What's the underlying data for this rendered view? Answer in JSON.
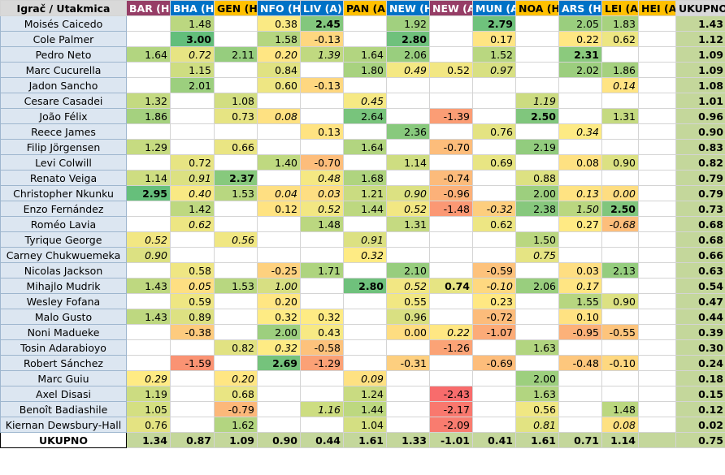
{
  "header": {
    "corner": "Igrač / Utakmica",
    "total": "UKUPNO",
    "columns": [
      {
        "label": "BAR (H)",
        "bg": "#963d66",
        "fg": "#ffffff"
      },
      {
        "label": "BHA (H)",
        "bg": "#0072c6",
        "fg": "#ffffff"
      },
      {
        "label": "GEN (H)",
        "bg": "#ffc000",
        "fg": "#000000"
      },
      {
        "label": "NFO (H)",
        "bg": "#0072c6",
        "fg": "#ffffff"
      },
      {
        "label": "LIV (A)",
        "bg": "#0072c6",
        "fg": "#ffffff"
      },
      {
        "label": "PAN (A)",
        "bg": "#ffc000",
        "fg": "#000000"
      },
      {
        "label": "NEW (H)",
        "bg": "#0072c6",
        "fg": "#ffffff"
      },
      {
        "label": "NEW (A)",
        "bg": "#963d66",
        "fg": "#ffffff"
      },
      {
        "label": "MUN (A)",
        "bg": "#0072c6",
        "fg": "#ffffff"
      },
      {
        "label": "NOA (H)",
        "bg": "#ffc000",
        "fg": "#000000"
      },
      {
        "label": "ARS (H)",
        "bg": "#0072c6",
        "fg": "#ffffff"
      },
      {
        "label": "LEI (A)",
        "bg": "#ffc000",
        "fg": "#000000"
      },
      {
        "label": "HEI (A)",
        "bg": "#ffc000",
        "fg": "#000000"
      }
    ]
  },
  "rows": [
    {
      "name": "Moisés Caicedo",
      "cells": [
        "",
        "1.48",
        "",
        "0.38",
        "2.45",
        "",
        "1.92",
        "",
        "2.79",
        "",
        "2.05",
        "1.83",
        ""
      ],
      "total": "1.43"
    },
    {
      "name": "Cole Palmer",
      "cells": [
        "",
        "3.00",
        "",
        "1.58",
        "-0.13",
        "",
        "2.80",
        "",
        "0.17",
        "",
        "0.22",
        "0.62",
        ""
      ],
      "total": "1.12"
    },
    {
      "name": "Pedro Neto",
      "cells": [
        "1.64",
        "0.72",
        "2.11",
        "0.20",
        "1.39",
        "1.64",
        "2.06",
        "",
        "1.52",
        "",
        "2.31",
        "",
        ""
      ],
      "total": "1.09"
    },
    {
      "name": "Marc Cucurella",
      "cells": [
        "",
        "1.15",
        "",
        "0.84",
        "",
        "1.80",
        "0.49",
        "0.52",
        "0.97",
        "",
        "2.02",
        "1.86",
        ""
      ],
      "total": "1.09"
    },
    {
      "name": "Jadon Sancho",
      "cells": [
        "",
        "2.01",
        "",
        "0.60",
        "-0.13",
        "",
        "",
        "",
        "",
        "",
        "",
        "0.14",
        ""
      ],
      "total": "1.08"
    },
    {
      "name": "Cesare Casadei",
      "cells": [
        "1.32",
        "",
        "1.08",
        "",
        "",
        "0.45",
        "",
        "",
        "",
        "1.19",
        "",
        "",
        ""
      ],
      "total": "1.01"
    },
    {
      "name": "João Félix",
      "cells": [
        "1.86",
        "",
        "0.73",
        "0.08",
        "",
        "2.64",
        "",
        "-1.39",
        "",
        "2.50",
        "",
        "1.31",
        ""
      ],
      "total": "0.96"
    },
    {
      "name": "Reece James",
      "cells": [
        "",
        "",
        "",
        "",
        "0.13",
        "",
        "2.36",
        "",
        "0.76",
        "",
        "0.34",
        "",
        ""
      ],
      "total": "0.90"
    },
    {
      "name": "Filip Jörgensen",
      "cells": [
        "1.29",
        "",
        "0.66",
        "",
        "",
        "1.64",
        "",
        "-0.70",
        "",
        "2.19",
        "",
        "",
        ""
      ],
      "total": "0.83"
    },
    {
      "name": "Levi Colwill",
      "cells": [
        "",
        "0.72",
        "",
        "1.40",
        "-0.70",
        "",
        "1.14",
        "",
        "0.69",
        "",
        "0.08",
        "0.90",
        ""
      ],
      "total": "0.82"
    },
    {
      "name": "Renato Veiga",
      "cells": [
        "1.14",
        "0.91",
        "2.37",
        "",
        "0.48",
        "1.68",
        "",
        "-0.74",
        "",
        "0.88",
        "",
        "",
        ""
      ],
      "total": "0.79"
    },
    {
      "name": "Christopher Nkunku",
      "cells": [
        "2.95",
        "0.40",
        "1.53",
        "0.04",
        "0.03",
        "1.21",
        "0.90",
        "-0.96",
        "",
        "2.00",
        "0.13",
        "0.00",
        ""
      ],
      "total": "0.79"
    },
    {
      "name": "Enzo Fernández",
      "cells": [
        "",
        "1.42",
        "",
        "0.12",
        "0.52",
        "1.44",
        "0.52",
        "-1.48",
        "-0.32",
        "2.38",
        "1.50",
        "2.50",
        ""
      ],
      "total": "0.73"
    },
    {
      "name": "Roméo Lavia",
      "cells": [
        "",
        "0.62",
        "",
        "",
        "1.48",
        "",
        "1.31",
        "",
        "0.62",
        "",
        "0.27",
        "-0.68",
        ""
      ],
      "total": "0.68"
    },
    {
      "name": "Tyrique George",
      "cells": [
        "0.52",
        "",
        "0.56",
        "",
        "",
        "0.91",
        "",
        "",
        "",
        "1.50",
        "",
        "",
        ""
      ],
      "total": "0.68"
    },
    {
      "name": "Carney Chukwuemeka",
      "cells": [
        "0.90",
        "",
        "",
        "",
        "",
        "0.32",
        "",
        "",
        "",
        "0.75",
        "",
        "",
        ""
      ],
      "total": "0.66"
    },
    {
      "name": "Nicolas Jackson",
      "cells": [
        "",
        "0.58",
        "",
        "-0.25",
        "1.71",
        "",
        "2.10",
        "",
        "-0.59",
        "",
        "0.03",
        "2.13",
        ""
      ],
      "total": "0.63"
    },
    {
      "name": "Mihajlo Mudrik",
      "cells": [
        "1.43",
        "0.05",
        "1.53",
        "1.00",
        "",
        "2.80",
        "0.52",
        "0.74",
        "-0.10",
        "2.06",
        "0.17",
        "",
        ""
      ],
      "total": "0.54"
    },
    {
      "name": "Wesley Fofana",
      "cells": [
        "",
        "0.59",
        "",
        "0.20",
        "",
        "",
        "0.55",
        "",
        "0.23",
        "",
        "1.55",
        "0.90",
        ""
      ],
      "total": "0.47"
    },
    {
      "name": "Malo Gusto",
      "cells": [
        "1.43",
        "0.89",
        "",
        "0.32",
        "0.32",
        "",
        "0.96",
        "",
        "-0.72",
        "",
        "0.10",
        "",
        ""
      ],
      "total": "0.44"
    },
    {
      "name": "Noni Madueke",
      "cells": [
        "",
        "-0.38",
        "",
        "2.00",
        "0.43",
        "",
        "0.00",
        "0.22",
        "-1.07",
        "",
        "-0.95",
        "-0.55",
        ""
      ],
      "total": "0.39"
    },
    {
      "name": "Tosin Adarabioyo",
      "cells": [
        "",
        "",
        "0.82",
        "0.32",
        "-0.58",
        "",
        "",
        "-1.26",
        "",
        "1.63",
        "",
        "",
        ""
      ],
      "total": "0.30"
    },
    {
      "name": "Robert Sánchez",
      "cells": [
        "",
        "-1.59",
        "",
        "2.69",
        "-1.29",
        "",
        "-0.31",
        "",
        "-0.69",
        "",
        "-0.48",
        "-0.10",
        ""
      ],
      "total": "0.24"
    },
    {
      "name": "Marc Guiu",
      "cells": [
        "0.29",
        "",
        "0.20",
        "",
        "",
        "0.09",
        "",
        "",
        "",
        "2.00",
        "",
        "",
        ""
      ],
      "total": "0.18"
    },
    {
      "name": "Axel Disasi",
      "cells": [
        "1.19",
        "",
        "0.68",
        "",
        "",
        "1.24",
        "",
        "-2.43",
        "",
        "1.63",
        "",
        "",
        ""
      ],
      "total": "0.15"
    },
    {
      "name": "Benoît Badiashile",
      "cells": [
        "1.05",
        "",
        "-0.79",
        "",
        "1.16",
        "1.44",
        "",
        "-2.17",
        "",
        "0.56",
        "",
        "1.48",
        ""
      ],
      "total": "0.12"
    },
    {
      "name": "Kiernan Dewsbury-Hall",
      "cells": [
        "0.76",
        "",
        "1.62",
        "",
        "",
        "1.04",
        "",
        "-2.09",
        "",
        "0.81",
        "",
        "0.08",
        ""
      ],
      "total": "0.02"
    }
  ],
  "italic": [
    [
      0,
      0,
      0,
      0,
      0,
      0,
      0,
      0,
      0,
      0,
      0,
      0,
      0
    ],
    [
      0,
      0,
      0,
      0,
      0,
      0,
      0,
      0,
      0,
      0,
      0,
      0,
      0
    ],
    [
      0,
      1,
      0,
      1,
      1,
      0,
      0,
      0,
      0,
      0,
      0,
      0,
      0
    ],
    [
      0,
      0,
      0,
      0,
      0,
      0,
      1,
      0,
      1,
      0,
      0,
      0,
      0
    ],
    [
      0,
      0,
      0,
      0,
      0,
      0,
      0,
      0,
      0,
      0,
      0,
      1,
      0
    ],
    [
      0,
      0,
      0,
      0,
      0,
      1,
      0,
      0,
      0,
      1,
      0,
      0,
      0
    ],
    [
      0,
      0,
      0,
      1,
      0,
      0,
      0,
      0,
      0,
      0,
      0,
      0,
      0
    ],
    [
      0,
      0,
      0,
      0,
      0,
      0,
      0,
      0,
      0,
      0,
      1,
      0,
      0
    ],
    [
      0,
      0,
      0,
      0,
      0,
      0,
      0,
      0,
      0,
      0,
      0,
      0,
      0
    ],
    [
      0,
      0,
      0,
      0,
      0,
      0,
      0,
      0,
      0,
      0,
      0,
      0,
      0
    ],
    [
      0,
      1,
      0,
      0,
      1,
      0,
      0,
      0,
      0,
      0,
      0,
      0,
      0
    ],
    [
      0,
      1,
      0,
      1,
      1,
      0,
      1,
      0,
      0,
      0,
      1,
      1,
      0
    ],
    [
      0,
      0,
      0,
      0,
      1,
      0,
      1,
      0,
      1,
      0,
      1,
      0,
      0
    ],
    [
      0,
      1,
      0,
      0,
      0,
      0,
      0,
      0,
      0,
      0,
      0,
      1,
      0
    ],
    [
      1,
      0,
      1,
      0,
      0,
      1,
      0,
      0,
      0,
      0,
      0,
      0,
      0
    ],
    [
      1,
      0,
      0,
      0,
      0,
      1,
      0,
      0,
      0,
      1,
      0,
      0,
      0
    ],
    [
      0,
      0,
      0,
      0,
      0,
      0,
      0,
      0,
      0,
      0,
      0,
      0,
      0
    ],
    [
      0,
      1,
      0,
      1,
      0,
      0,
      1,
      0,
      1,
      0,
      1,
      0,
      0
    ],
    [
      0,
      0,
      0,
      0,
      0,
      0,
      0,
      0,
      0,
      0,
      0,
      0,
      0
    ],
    [
      0,
      0,
      0,
      0,
      0,
      0,
      0,
      0,
      0,
      0,
      0,
      0,
      0
    ],
    [
      0,
      0,
      0,
      0,
      0,
      0,
      0,
      1,
      0,
      0,
      0,
      0,
      0
    ],
    [
      0,
      0,
      0,
      1,
      0,
      0,
      0,
      0,
      0,
      0,
      0,
      0,
      0
    ],
    [
      0,
      0,
      0,
      0,
      0,
      0,
      0,
      0,
      0,
      0,
      0,
      0,
      0
    ],
    [
      1,
      0,
      1,
      0,
      0,
      1,
      0,
      0,
      0,
      0,
      0,
      0,
      0
    ],
    [
      0,
      0,
      0,
      0,
      0,
      0,
      0,
      0,
      0,
      0,
      0,
      0,
      0
    ],
    [
      0,
      0,
      0,
      0,
      1,
      0,
      0,
      0,
      0,
      0,
      0,
      0,
      0
    ],
    [
      0,
      0,
      0,
      0,
      0,
      0,
      0,
      0,
      0,
      1,
      0,
      1,
      0
    ]
  ],
  "bold": [
    [
      0,
      0,
      0,
      0,
      1,
      0,
      0,
      0,
      1,
      0,
      0,
      0,
      0
    ],
    [
      0,
      1,
      0,
      0,
      0,
      0,
      1,
      0,
      0,
      0,
      0,
      0,
      0
    ],
    [
      0,
      0,
      0,
      0,
      0,
      0,
      0,
      0,
      0,
      0,
      1,
      0,
      0
    ],
    [
      0,
      0,
      0,
      0,
      0,
      0,
      0,
      0,
      0,
      0,
      0,
      0,
      0
    ],
    [
      0,
      0,
      0,
      0,
      0,
      0,
      0,
      0,
      0,
      0,
      0,
      0,
      0
    ],
    [
      0,
      0,
      0,
      0,
      0,
      0,
      0,
      0,
      0,
      0,
      0,
      0,
      0
    ],
    [
      0,
      0,
      0,
      0,
      0,
      0,
      0,
      0,
      0,
      1,
      0,
      0,
      0
    ],
    [
      0,
      0,
      0,
      0,
      0,
      0,
      0,
      0,
      0,
      0,
      0,
      0,
      0
    ],
    [
      0,
      0,
      0,
      0,
      0,
      0,
      0,
      0,
      0,
      0,
      0,
      0,
      0
    ],
    [
      0,
      0,
      0,
      0,
      0,
      0,
      0,
      0,
      0,
      0,
      0,
      0,
      0
    ],
    [
      0,
      0,
      1,
      0,
      0,
      0,
      0,
      0,
      0,
      0,
      0,
      0,
      0
    ],
    [
      1,
      0,
      0,
      0,
      0,
      0,
      0,
      0,
      0,
      0,
      0,
      0,
      0
    ],
    [
      0,
      0,
      0,
      0,
      0,
      0,
      0,
      0,
      0,
      0,
      0,
      1,
      0
    ],
    [
      0,
      0,
      0,
      0,
      0,
      0,
      0,
      0,
      0,
      0,
      0,
      0,
      0
    ],
    [
      0,
      0,
      0,
      0,
      0,
      0,
      0,
      0,
      0,
      0,
      0,
      0,
      0
    ],
    [
      0,
      0,
      0,
      0,
      0,
      0,
      0,
      0,
      0,
      0,
      0,
      0,
      0
    ],
    [
      0,
      0,
      0,
      0,
      0,
      0,
      0,
      0,
      0,
      0,
      0,
      0,
      0
    ],
    [
      0,
      0,
      0,
      0,
      0,
      1,
      0,
      1,
      0,
      0,
      0,
      0,
      0
    ],
    [
      0,
      0,
      0,
      0,
      0,
      0,
      0,
      0,
      0,
      0,
      0,
      0,
      0
    ],
    [
      0,
      0,
      0,
      0,
      0,
      0,
      0,
      0,
      0,
      0,
      0,
      0,
      0
    ],
    [
      0,
      0,
      0,
      0,
      0,
      0,
      0,
      0,
      0,
      0,
      0,
      0,
      0
    ],
    [
      0,
      0,
      0,
      0,
      0,
      0,
      0,
      0,
      0,
      0,
      0,
      0,
      0
    ],
    [
      0,
      0,
      0,
      1,
      0,
      0,
      0,
      0,
      0,
      0,
      0,
      0,
      0
    ],
    [
      0,
      0,
      0,
      0,
      0,
      0,
      0,
      0,
      0,
      0,
      0,
      0,
      0
    ],
    [
      0,
      0,
      0,
      0,
      0,
      0,
      0,
      0,
      0,
      0,
      0,
      0,
      0
    ],
    [
      0,
      0,
      0,
      0,
      0,
      0,
      0,
      0,
      0,
      0,
      0,
      0,
      0
    ],
    [
      0,
      0,
      0,
      0,
      0,
      0,
      0,
      0,
      0,
      0,
      0,
      0,
      0
    ]
  ],
  "footer": {
    "label": "UKUPNO",
    "cells": [
      "1.34",
      "0.87",
      "1.09",
      "0.90",
      "0.44",
      "1.61",
      "1.33",
      "-1.01",
      "0.41",
      "1.61",
      "0.71",
      "1.14",
      ""
    ],
    "total": "0.75"
  }
}
